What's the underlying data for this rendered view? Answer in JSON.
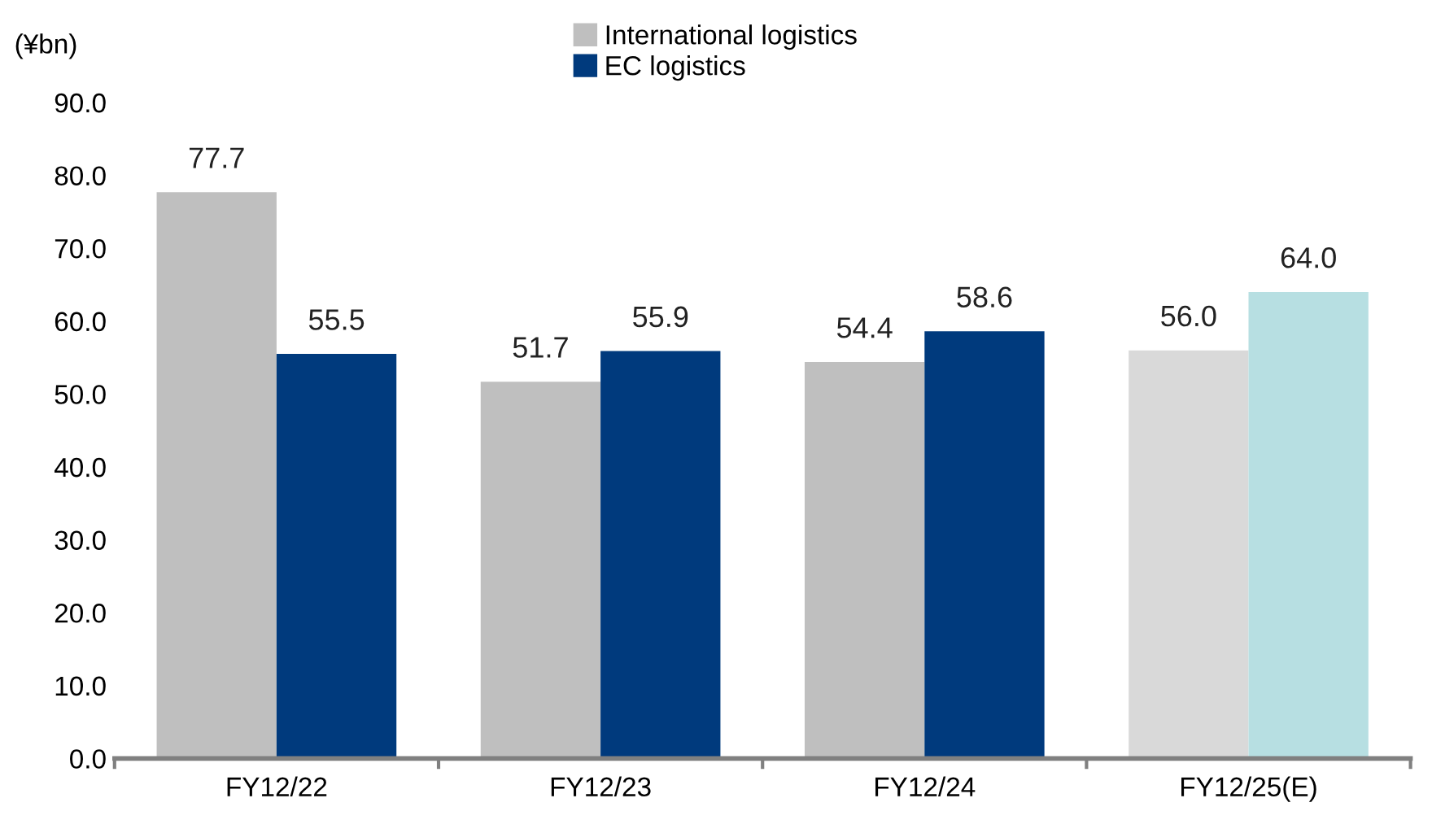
{
  "chart_data": {
    "type": "bar",
    "ylabel": "(¥bn)",
    "categories": [
      "FY12/22",
      "FY12/23",
      "FY12/24",
      "FY12/25(E)"
    ],
    "series": [
      {
        "name": "International logistics",
        "color": "#bfbfbf",
        "colors": [
          "#bfbfbf",
          "#bfbfbf",
          "#bfbfbf",
          "#d9d9d9"
        ],
        "values": [
          77.7,
          51.7,
          54.4,
          56.0
        ],
        "value_labels": [
          "77.7",
          "51.7",
          "54.4",
          "56.0"
        ]
      },
      {
        "name": "EC logistics",
        "color": "#003a7d",
        "colors": [
          "#003a7d",
          "#003a7d",
          "#003a7d",
          "#b7dfe2"
        ],
        "values": [
          55.5,
          55.9,
          58.6,
          64.0
        ],
        "value_labels": [
          "55.5",
          "55.9",
          "58.6",
          "64.0"
        ]
      }
    ],
    "ylim": [
      0,
      90
    ],
    "yticks": [
      {
        "value": 0,
        "label": "0.0"
      },
      {
        "value": 10,
        "label": "10.0"
      },
      {
        "value": 20,
        "label": "20.0"
      },
      {
        "value": 30,
        "label": "30.0"
      },
      {
        "value": 40,
        "label": "40.0"
      },
      {
        "value": 50,
        "label": "50.0"
      },
      {
        "value": 60,
        "label": "60.0"
      },
      {
        "value": 70,
        "label": "70.0"
      },
      {
        "value": 80,
        "label": "80.0"
      },
      {
        "value": 90,
        "label": "90.0"
      }
    ],
    "grid": false,
    "legend": "top"
  }
}
